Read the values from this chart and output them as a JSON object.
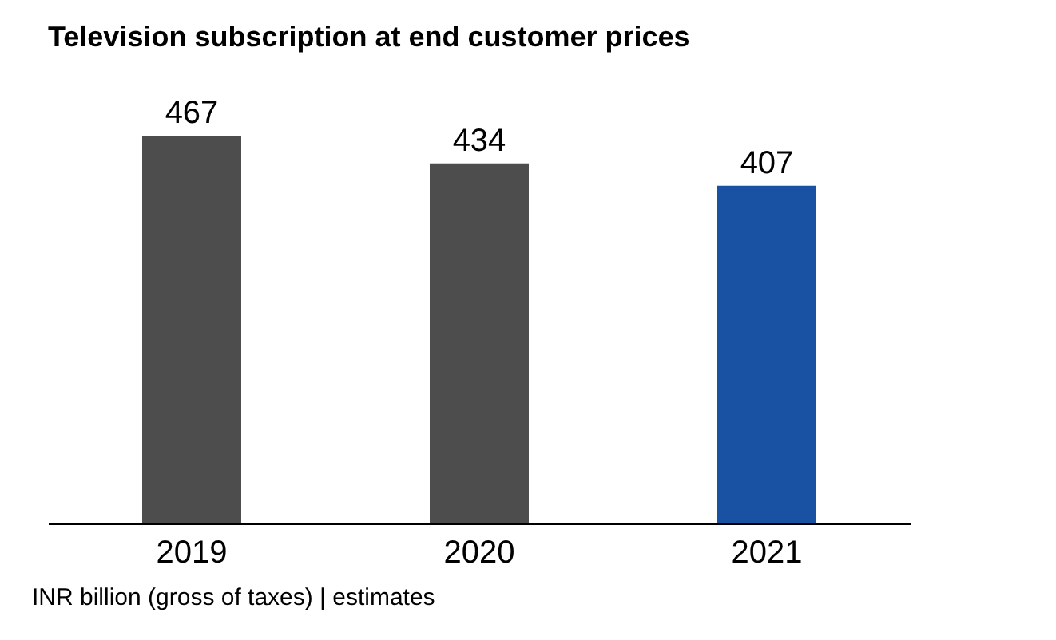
{
  "chart_data": {
    "type": "bar",
    "title": "Television subscription at end customer prices",
    "categories": [
      "2019",
      "2020",
      "2021"
    ],
    "values": [
      467,
      434,
      407
    ],
    "colors": [
      "#4d4d4d",
      "#4d4d4d",
      "#1a52a3"
    ],
    "data_labels": true,
    "tick_labels": "x",
    "grid": false,
    "annotations": [
      "INR billion (gross of taxes) | estimates"
    ]
  }
}
